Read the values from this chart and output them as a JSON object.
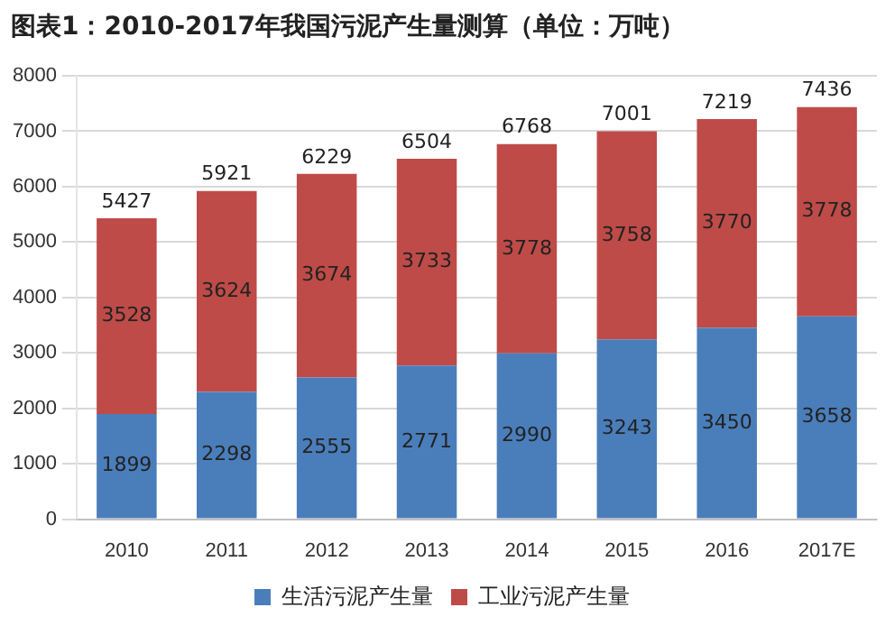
{
  "chart_data": {
    "type": "bar",
    "title": "图表1：2010-2017年我国污泥产生量测算（单位：万吨）",
    "categories": [
      "2010",
      "2011",
      "2012",
      "2013",
      "2014",
      "2015",
      "2016",
      "2017E"
    ],
    "series": [
      {
        "name": "生活污泥产生量",
        "color": "#4a7ebb",
        "values": [
          1899,
          2298,
          2555,
          2771,
          2990,
          3243,
          3450,
          3658
        ]
      },
      {
        "name": "工业污泥产生量",
        "color": "#be4b48",
        "values": [
          3528,
          3624,
          3674,
          3733,
          3778,
          3758,
          3770,
          3778
        ]
      }
    ],
    "stacked": true,
    "ylim": [
      0,
      8000
    ],
    "yticks": [
      0,
      1000,
      2000,
      3000,
      4000,
      5000,
      6000,
      7000,
      8000
    ],
    "grid": "y",
    "legend": "bottom",
    "data_labels": true,
    "totals": [
      "5427",
      "5921",
      "6229",
      "6504",
      "6768",
      "7001",
      "7219",
      "7436"
    ]
  }
}
